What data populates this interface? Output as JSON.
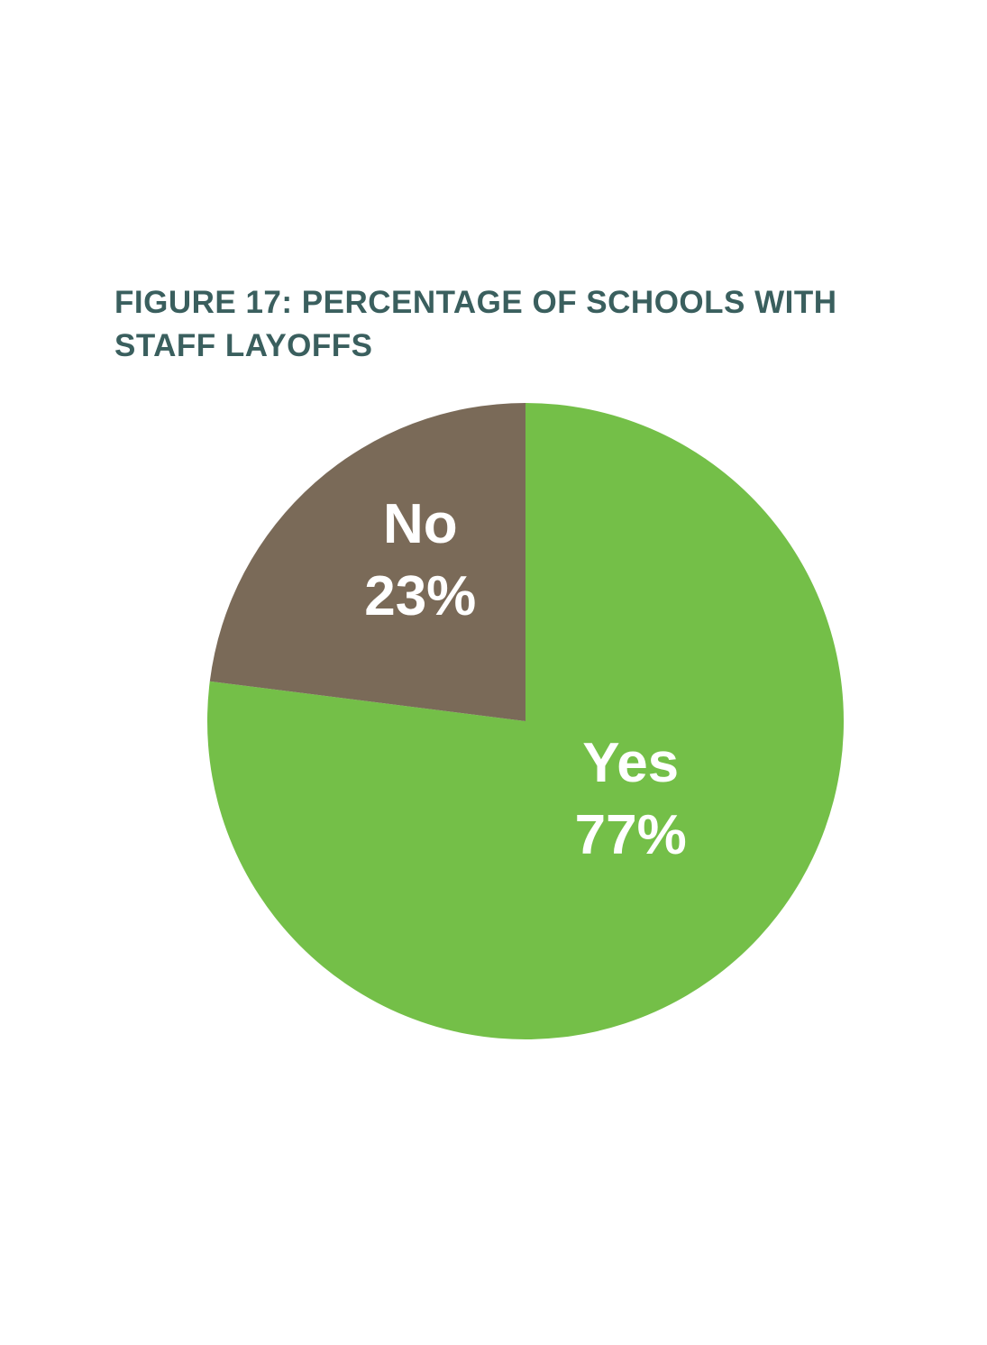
{
  "chart_data": {
    "type": "pie",
    "title": "FIGURE 17: PERCENTAGE OF SCHOOLS WITH STAFF LAYOFFS",
    "categories": [
      "Yes",
      "No"
    ],
    "values": [
      77,
      23
    ],
    "value_labels": [
      "77%",
      "23%"
    ],
    "colors": [
      "#74bf48",
      "#7a6a58"
    ]
  }
}
